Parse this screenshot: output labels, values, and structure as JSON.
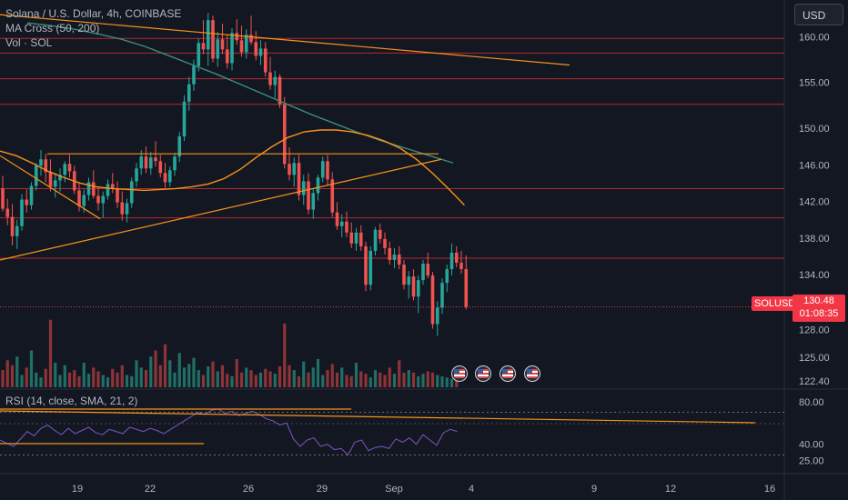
{
  "legend": {
    "title": "Solana / U.S. Dollar, 4h, COINBASE",
    "ma_cross": "MA Cross (50, 200)",
    "volume": "Vol · SOL",
    "rsi": "RSI (14, close, SMA, 21, 2)"
  },
  "toolbar": {
    "currency": "USD"
  },
  "price_tag": {
    "symbol": "SOLUSD",
    "value": "130.48",
    "countdown": "01:08:35"
  },
  "icons": [
    "us-flag-icon",
    "us-flag-icon",
    "us-flag-icon",
    "us-flag-icon"
  ],
  "colors": {
    "background": "#131722",
    "up": "#26a69a",
    "down": "#ef5350",
    "trendline": "#f7931a",
    "ma200": "#3b8d7c",
    "hline": "#b22833",
    "rsi": "#7e57c2"
  },
  "chart_data": [
    {
      "type": "candlestick",
      "title": "Solana / U.S. Dollar, 4h, COINBASE",
      "ylim": [
        121.5,
        164
      ],
      "y_ticks": [
        "160.00",
        "155.00",
        "150.00",
        "146.00",
        "142.00",
        "138.00",
        "134.00",
        "128.00",
        "125.00",
        "122.40"
      ],
      "x_ticks": [
        "19",
        "22",
        "26",
        "29",
        "Sep",
        "4",
        "9",
        "12",
        "16"
      ],
      "last_price": 130.48,
      "horizontal_levels": [
        159.8,
        158.2,
        155.4,
        152.6,
        143.4,
        140.2,
        135.8,
        130.48
      ],
      "candles_ohlc": [
        [
          143.4,
          144.8,
          140.9,
          141.2
        ],
        [
          141.2,
          142.3,
          139.4,
          140.3
        ],
        [
          140.3,
          141.7,
          137.2,
          138.2
        ],
        [
          138.2,
          140.0,
          136.8,
          139.3
        ],
        [
          139.3,
          142.8,
          138.8,
          142.2
        ],
        [
          142.2,
          143.3,
          140.8,
          141.6
        ],
        [
          141.6,
          144.1,
          141.1,
          143.7
        ],
        [
          143.7,
          146.2,
          143.2,
          145.9
        ],
        [
          145.9,
          147.6,
          144.8,
          146.6
        ],
        [
          146.6,
          147.2,
          144.1,
          145.2
        ],
        [
          145.2,
          146.6,
          143.1,
          143.6
        ],
        [
          143.6,
          145.1,
          142.4,
          144.3
        ],
        [
          144.3,
          145.6,
          143.1,
          144.9
        ],
        [
          144.9,
          146.4,
          144.1,
          146.1
        ],
        [
          146.1,
          147.1,
          144.6,
          145.3
        ],
        [
          145.3,
          145.9,
          142.8,
          143.2
        ],
        [
          143.2,
          144.1,
          140.9,
          141.5
        ],
        [
          141.5,
          143.3,
          140.8,
          142.7
        ],
        [
          142.7,
          144.6,
          142.1,
          144.1
        ],
        [
          144.1,
          145.4,
          142.3,
          142.6
        ],
        [
          142.6,
          143.6,
          141.0,
          141.8
        ],
        [
          141.8,
          143.1,
          140.2,
          142.6
        ],
        [
          142.6,
          144.4,
          142.2,
          143.9
        ],
        [
          143.9,
          145.1,
          142.9,
          143.4
        ],
        [
          143.4,
          144.2,
          141.3,
          141.9
        ],
        [
          141.9,
          143.1,
          139.9,
          140.6
        ],
        [
          140.6,
          142.3,
          139.7,
          141.8
        ],
        [
          141.8,
          144.6,
          141.3,
          144.2
        ],
        [
          144.2,
          146.2,
          143.6,
          145.6
        ],
        [
          145.6,
          147.6,
          144.9,
          146.9
        ],
        [
          146.9,
          148.0,
          145.1,
          145.6
        ],
        [
          145.6,
          147.4,
          144.9,
          146.8
        ],
        [
          146.8,
          148.6,
          145.8,
          146.4
        ],
        [
          146.4,
          147.1,
          144.6,
          145.1
        ],
        [
          145.1,
          146.2,
          143.5,
          144.1
        ],
        [
          144.1,
          145.8,
          143.6,
          145.4
        ],
        [
          145.4,
          147.3,
          144.8,
          146.9
        ],
        [
          146.9,
          149.6,
          146.3,
          149.1
        ],
        [
          149.1,
          153.6,
          148.6,
          152.9
        ],
        [
          152.9,
          155.6,
          151.9,
          154.8
        ],
        [
          154.8,
          157.5,
          154.1,
          156.8
        ],
        [
          156.8,
          159.8,
          156.2,
          159.3
        ],
        [
          159.3,
          161.8,
          158.1,
          158.6
        ],
        [
          158.6,
          162.6,
          156.8,
          161.8
        ],
        [
          161.8,
          162.3,
          157.2,
          157.6
        ],
        [
          157.6,
          160.5,
          156.7,
          159.7
        ],
        [
          159.7,
          161.4,
          158.1,
          158.6
        ],
        [
          158.6,
          160.2,
          156.5,
          157.1
        ],
        [
          157.1,
          160.9,
          156.3,
          160.4
        ],
        [
          160.4,
          161.9,
          159.1,
          159.6
        ],
        [
          159.6,
          161.2,
          157.8,
          158.3
        ],
        [
          158.3,
          160.8,
          157.6,
          160.2
        ],
        [
          160.2,
          162.3,
          159.1,
          159.4
        ],
        [
          159.4,
          160.6,
          157.4,
          157.9
        ],
        [
          157.9,
          159.6,
          156.9,
          158.7
        ],
        [
          158.7,
          159.4,
          155.6,
          156.1
        ],
        [
          156.1,
          157.8,
          154.2,
          154.7
        ],
        [
          154.7,
          156.3,
          153.3,
          155.6
        ],
        [
          155.6,
          155.9,
          152.2,
          152.6
        ],
        [
          152.6,
          153.4,
          145.6,
          146.1
        ],
        [
          146.1,
          147.9,
          144.3,
          144.9
        ],
        [
          144.9,
          146.8,
          143.6,
          146.2
        ],
        [
          146.2,
          147.1,
          142.1,
          142.7
        ],
        [
          142.7,
          144.9,
          141.6,
          144.2
        ],
        [
          144.2,
          145.1,
          140.6,
          141.1
        ],
        [
          141.1,
          143.4,
          140.1,
          142.9
        ],
        [
          142.9,
          144.9,
          142.1,
          144.6
        ],
        [
          144.6,
          146.9,
          144.1,
          146.4
        ],
        [
          146.4,
          147.1,
          143.8,
          144.4
        ],
        [
          144.4,
          145.2,
          140.3,
          140.8
        ],
        [
          140.8,
          141.9,
          138.9,
          139.3
        ],
        [
          139.3,
          140.6,
          138.1,
          139.8
        ],
        [
          139.8,
          140.9,
          138.1,
          138.6
        ],
        [
          138.6,
          139.7,
          136.9,
          137.4
        ],
        [
          137.4,
          139.1,
          136.6,
          138.6
        ],
        [
          138.6,
          139.4,
          136.6,
          137.1
        ],
        [
          137.1,
          137.6,
          132.2,
          132.9
        ],
        [
          132.9,
          137.1,
          132.3,
          136.6
        ],
        [
          136.6,
          139.2,
          136.1,
          138.9
        ],
        [
          138.9,
          139.6,
          137.4,
          137.9
        ],
        [
          137.9,
          138.6,
          136.2,
          136.9
        ],
        [
          136.9,
          137.6,
          135.1,
          135.6
        ],
        [
          135.6,
          136.9,
          134.7,
          136.2
        ],
        [
          136.2,
          137.1,
          134.6,
          135.1
        ],
        [
          135.1,
          135.6,
          132.4,
          132.9
        ],
        [
          132.9,
          134.4,
          131.4,
          133.8
        ],
        [
          133.8,
          134.6,
          131.2,
          131.6
        ],
        [
          131.6,
          133.9,
          129.8,
          133.4
        ],
        [
          133.4,
          135.6,
          132.9,
          135.2
        ],
        [
          135.2,
          136.4,
          133.6,
          133.9
        ],
        [
          133.9,
          134.3,
          128.1,
          128.6
        ],
        [
          128.6,
          131.1,
          127.3,
          130.4
        ],
        [
          130.4,
          133.6,
          129.7,
          133.1
        ],
        [
          133.1,
          135.1,
          132.1,
          134.6
        ],
        [
          134.6,
          137.4,
          133.9,
          136.4
        ],
        [
          136.4,
          137.1,
          134.8,
          135.3
        ],
        [
          135.3,
          136.6,
          134.1,
          134.6
        ],
        [
          134.6,
          136.1,
          130.2,
          130.48
        ]
      ],
      "ma50": [
        147.5,
        147.0,
        146.2,
        145.3,
        144.6,
        144.0,
        143.6,
        143.4,
        143.3,
        143.2,
        143.3,
        143.4,
        143.6,
        143.9,
        144.5,
        145.5,
        146.8,
        148.0,
        149.0,
        149.6,
        149.8,
        149.8,
        149.6,
        149.2,
        148.6,
        147.8,
        146.6,
        145.1,
        143.4,
        141.6
      ],
      "ma200": [
        161.5,
        161.2,
        160.8,
        160.3,
        159.7,
        158.9,
        157.9,
        156.9,
        155.9,
        154.8,
        153.7,
        152.6,
        151.5,
        150.5,
        149.5,
        148.6,
        147.8,
        147.0,
        146.2
      ],
      "volume": [
        14,
        22,
        18,
        25,
        10,
        16,
        30,
        12,
        8,
        15,
        55,
        20,
        10,
        18,
        12,
        14,
        9,
        20,
        11,
        16,
        13,
        10,
        8,
        15,
        12,
        18,
        10,
        9,
        22,
        16,
        14,
        25,
        30,
        18,
        35,
        22,
        12,
        28,
        16,
        19,
        24,
        14,
        10,
        17,
        21,
        13,
        18,
        11,
        9,
        23,
        12,
        16,
        14,
        10,
        12,
        15,
        13,
        11,
        17,
        52,
        18,
        14,
        9,
        21,
        12,
        16,
        23,
        10,
        14,
        19,
        12,
        16,
        10,
        9,
        20,
        13,
        11,
        8,
        14,
        12,
        10,
        16,
        11,
        22,
        12,
        14,
        12,
        9,
        11,
        13,
        12,
        10,
        9,
        8,
        7,
        10
      ],
      "rsi": [
        44,
        41,
        38,
        45,
        52,
        48,
        55,
        58,
        53,
        49,
        55,
        50,
        53,
        56,
        51,
        49,
        54,
        52,
        50,
        56,
        54,
        52,
        55,
        53,
        50,
        54,
        58,
        62,
        66,
        70,
        68,
        72,
        73,
        69,
        71,
        67,
        69,
        71,
        68,
        64,
        62,
        58,
        60,
        45,
        38,
        44,
        46,
        38,
        40,
        35,
        36,
        30,
        42,
        44,
        34,
        37,
        38,
        36,
        45,
        42,
        46,
        40,
        49,
        44,
        39,
        51,
        54,
        52
      ]
    }
  ]
}
